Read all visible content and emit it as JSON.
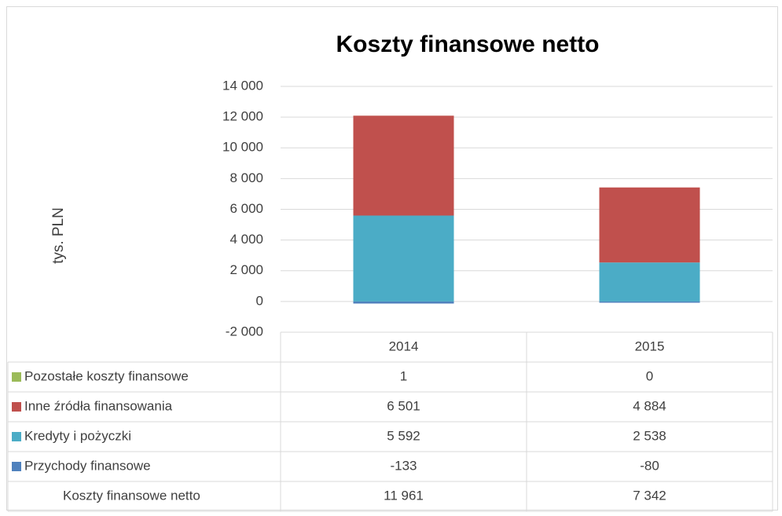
{
  "chart_data": {
    "type": "bar",
    "stacked": true,
    "title": "Koszty finansowe netto",
    "y_label": "tys. PLN",
    "categories": [
      "2014",
      "2015"
    ],
    "series": [
      {
        "name": "Przychody finansowe",
        "color": "#4f81bd",
        "values": [
          -133,
          -80
        ]
      },
      {
        "name": "Kredyty i pożyczki",
        "color": "#4bacc6",
        "values": [
          5592,
          2538
        ],
        "value_labels": [
          "5 592",
          "2 538"
        ]
      },
      {
        "name": "Inne źródła finansowania",
        "color": "#c0504d",
        "values": [
          6501,
          4884
        ],
        "value_labels": [
          "6 501",
          "4 884"
        ]
      },
      {
        "name": "Pozostałe koszty finansowe",
        "color": "#9bbb59",
        "values": [
          1,
          0
        ]
      }
    ],
    "totals": {
      "name": "Koszty finansowe netto",
      "values": [
        11961,
        7342
      ],
      "value_labels": [
        "11 961",
        "7 342"
      ]
    },
    "ylim": [
      -2000,
      14000
    ],
    "yticks": [
      {
        "value": -2000,
        "label": "-2 000"
      },
      0,
      {
        "value": 2000,
        "label": "2 000"
      },
      {
        "value": 4000,
        "label": "4 000"
      },
      {
        "value": 6000,
        "label": "6 000"
      },
      {
        "value": 8000,
        "label": "8 000"
      },
      {
        "value": 10000,
        "label": "10 000"
      },
      {
        "value": 12000,
        "label": "12 000"
      },
      {
        "value": 14000,
        "label": "14 000"
      }
    ],
    "grid": true
  }
}
